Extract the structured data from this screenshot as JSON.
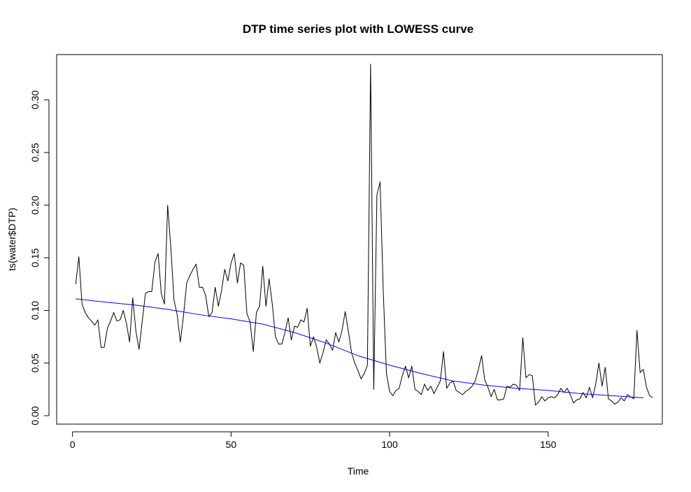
{
  "chart_data": {
    "type": "line",
    "title": "DTP time series plot with LOWESS curve",
    "xlabel": "Time",
    "ylabel": "ts(water$DTP)",
    "xlim": [
      -5,
      186
    ],
    "ylim": [
      -0.008,
      0.343
    ],
    "xticks": [
      0,
      50,
      100,
      150
    ],
    "yticks": [
      0.0,
      0.05,
      0.1,
      0.15,
      0.2,
      0.25,
      0.3
    ],
    "ytick_labels": [
      "0.00",
      "0.05",
      "0.10",
      "0.15",
      "0.20",
      "0.25",
      "0.30"
    ],
    "grid": false,
    "legend": "none",
    "series": [
      {
        "color": "#000000",
        "x_start": 1,
        "values": [
          0.125,
          0.151,
          0.106,
          0.098,
          0.093,
          0.09,
          0.086,
          0.091,
          0.065,
          0.065,
          0.083,
          0.09,
          0.098,
          0.09,
          0.091,
          0.1,
          0.088,
          0.07,
          0.112,
          0.08,
          0.063,
          0.09,
          0.116,
          0.118,
          0.118,
          0.146,
          0.154,
          0.116,
          0.106,
          0.2,
          0.16,
          0.11,
          0.096,
          0.07,
          0.095,
          0.126,
          0.133,
          0.139,
          0.144,
          0.122,
          0.122,
          0.114,
          0.094,
          0.098,
          0.122,
          0.104,
          0.119,
          0.139,
          0.128,
          0.145,
          0.154,
          0.126,
          0.145,
          0.143,
          0.097,
          0.089,
          0.061,
          0.098,
          0.104,
          0.142,
          0.104,
          0.13,
          0.106,
          0.075,
          0.068,
          0.068,
          0.079,
          0.093,
          0.072,
          0.085,
          0.084,
          0.091,
          0.089,
          0.102,
          0.066,
          0.075,
          0.065,
          0.05,
          0.06,
          0.072,
          0.068,
          0.062,
          0.079,
          0.07,
          0.081,
          0.099,
          0.08,
          0.06,
          0.05,
          0.043,
          0.035,
          0.04,
          0.048,
          0.334,
          0.025,
          0.21,
          0.222,
          0.118,
          0.04,
          0.023,
          0.019,
          0.024,
          0.026,
          0.038,
          0.047,
          0.036,
          0.047,
          0.025,
          0.023,
          0.02,
          0.03,
          0.024,
          0.028,
          0.021,
          0.027,
          0.033,
          0.061,
          0.026,
          0.031,
          0.033,
          0.024,
          0.022,
          0.02,
          0.023,
          0.025,
          0.028,
          0.033,
          0.044,
          0.057,
          0.034,
          0.027,
          0.018,
          0.025,
          0.015,
          0.015,
          0.016,
          0.028,
          0.027,
          0.03,
          0.029,
          0.024,
          0.074,
          0.036,
          0.039,
          0.038,
          0.01,
          0.013,
          0.018,
          0.014,
          0.017,
          0.018,
          0.017,
          0.02,
          0.026,
          0.022,
          0.026,
          0.02,
          0.012,
          0.015,
          0.016,
          0.022,
          0.017,
          0.027,
          0.017,
          0.03,
          0.05,
          0.028,
          0.046,
          0.016,
          0.014,
          0.011,
          0.013,
          0.017,
          0.014,
          0.02,
          0.018,
          0.016,
          0.081,
          0.041,
          0.044,
          0.027,
          0.019,
          0.017
        ]
      },
      {
        "color": "#0000ff",
        "x": [
          1,
          10,
          20,
          30,
          40,
          50,
          60,
          70,
          80,
          90,
          100,
          110,
          120,
          130,
          140,
          150,
          160,
          170,
          180
        ],
        "values": [
          0.111,
          0.108,
          0.105,
          0.101,
          0.096,
          0.092,
          0.087,
          0.079,
          0.069,
          0.057,
          0.048,
          0.04,
          0.033,
          0.029,
          0.026,
          0.024,
          0.021,
          0.019,
          0.017
        ]
      }
    ]
  }
}
